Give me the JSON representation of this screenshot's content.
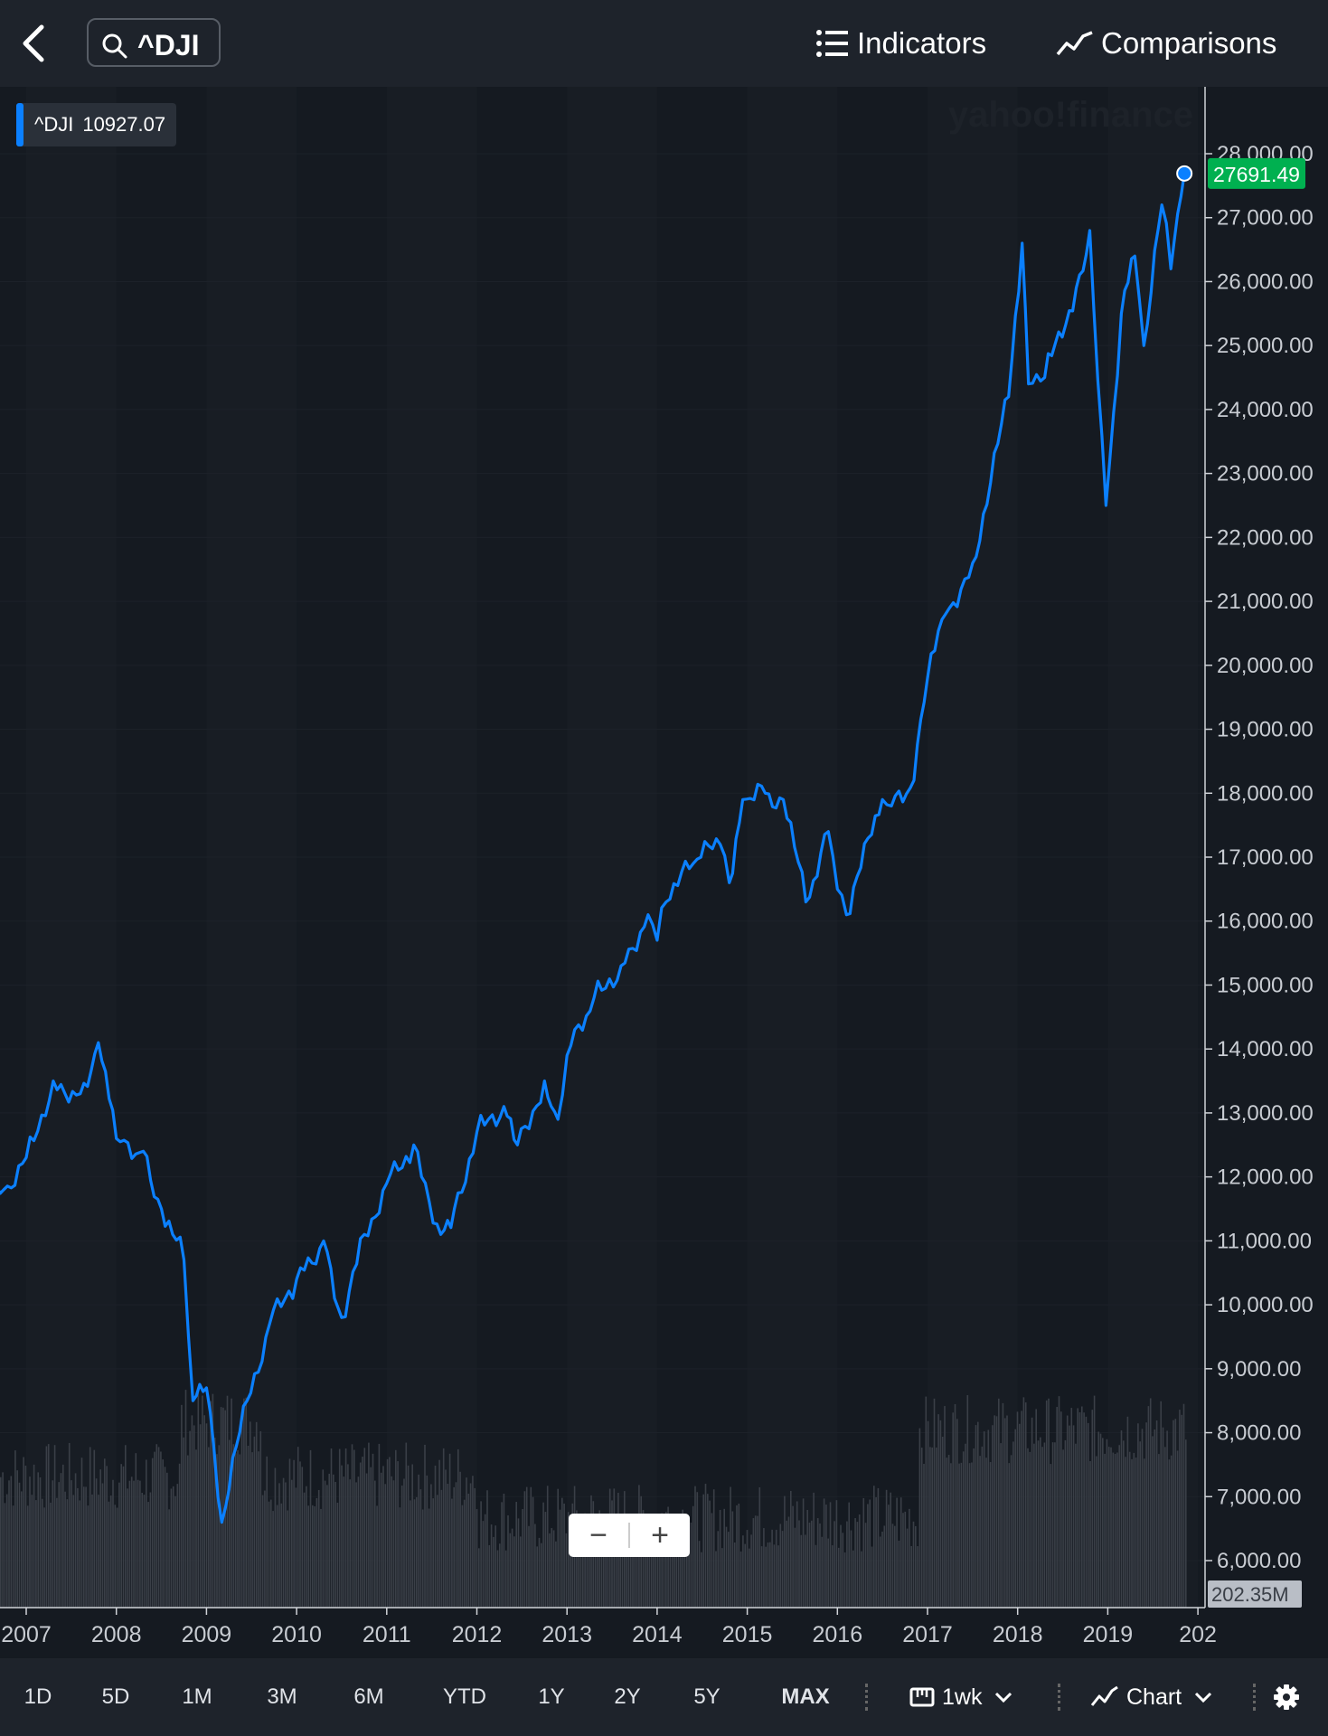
{
  "header": {
    "search_value": "^DJI",
    "indicators_label": "Indicators",
    "comparisons_label": "Comparisons"
  },
  "legend": {
    "symbol": "^DJI",
    "value": "10927.07"
  },
  "watermark": "yahoo!finance",
  "zoom": {
    "minus": "−",
    "plus": "+"
  },
  "colors": {
    "line": "#0b80ff",
    "last_price_bg": "#00b050",
    "volume": "#3a3f47"
  },
  "chart_data": {
    "type": "line",
    "x": [
      2006.75,
      2007.0,
      2007.3,
      2007.6,
      2007.8,
      2008.0,
      2008.3,
      2008.5,
      2008.75,
      2008.85,
      2009.0,
      2009.17,
      2009.45,
      2009.7,
      2010.0,
      2010.3,
      2010.5,
      2010.75,
      2011.0,
      2011.3,
      2011.6,
      2011.75,
      2012.0,
      2012.3,
      2012.45,
      2012.75,
      2012.9,
      2013.0,
      2013.3,
      2013.6,
      2013.9,
      2014.0,
      2014.1,
      2014.4,
      2014.7,
      2014.8,
      2014.95,
      2015.2,
      2015.4,
      2015.65,
      2015.9,
      2016.0,
      2016.1,
      2016.5,
      2016.6,
      2016.85,
      2017.0,
      2017.2,
      2017.5,
      2017.9,
      2018.05,
      2018.12,
      2018.3,
      2018.65,
      2018.8,
      2018.98,
      2019.15,
      2019.3,
      2019.4,
      2019.6,
      2019.7,
      2019.85
    ],
    "y": [
      11800,
      12300,
      13500,
      13300,
      14100,
      12600,
      12400,
      11500,
      10700,
      8500,
      8700,
      6600,
      8500,
      9700,
      10400,
      11000,
      9800,
      11100,
      11900,
      12500,
      11100,
      11500,
      12700,
      13100,
      12500,
      13500,
      12900,
      13900,
      14800,
      15300,
      16100,
      15700,
      16300,
      16900,
      17200,
      16600,
      17900,
      18000,
      17900,
      16300,
      17400,
      16500,
      16100,
      17900,
      17800,
      18200,
      19800,
      20800,
      21600,
      24200,
      26600,
      24400,
      24500,
      25900,
      26800,
      22500,
      25500,
      26400,
      25000,
      27200,
      26200,
      27691.49
    ],
    "ylim": [
      6000,
      28000
    ],
    "yticks": [
      "28,000.00",
      "27,000.00",
      "26,000.00",
      "25,000.00",
      "24,000.00",
      "23,000.00",
      "22,000.00",
      "21,000.00",
      "20,000.00",
      "19,000.00",
      "18,000.00",
      "17,000.00",
      "16,000.00",
      "15,000.00",
      "14,000.00",
      "13,000.00",
      "12,000.00",
      "11,000.00",
      "10,000.00",
      "9,000.00",
      "8,000.00",
      "7,000.00",
      "6,000.00"
    ],
    "xticks": [
      "2007",
      "2008",
      "2009",
      "2010",
      "2011",
      "2012",
      "2013",
      "2014",
      "2015",
      "2016",
      "2017",
      "2018",
      "2019",
      "202"
    ],
    "last_value": "27691.49",
    "volume_label": "202.35M",
    "volume_level_fraction": 0.33,
    "grid": true
  },
  "bottombar": {
    "ranges": [
      "1D",
      "5D",
      "1M",
      "3M",
      "6M",
      "YTD",
      "1Y",
      "2Y",
      "5Y",
      "MAX"
    ],
    "active_range": "MAX",
    "interval_label": "1wk",
    "chart_type_label": "Chart"
  }
}
